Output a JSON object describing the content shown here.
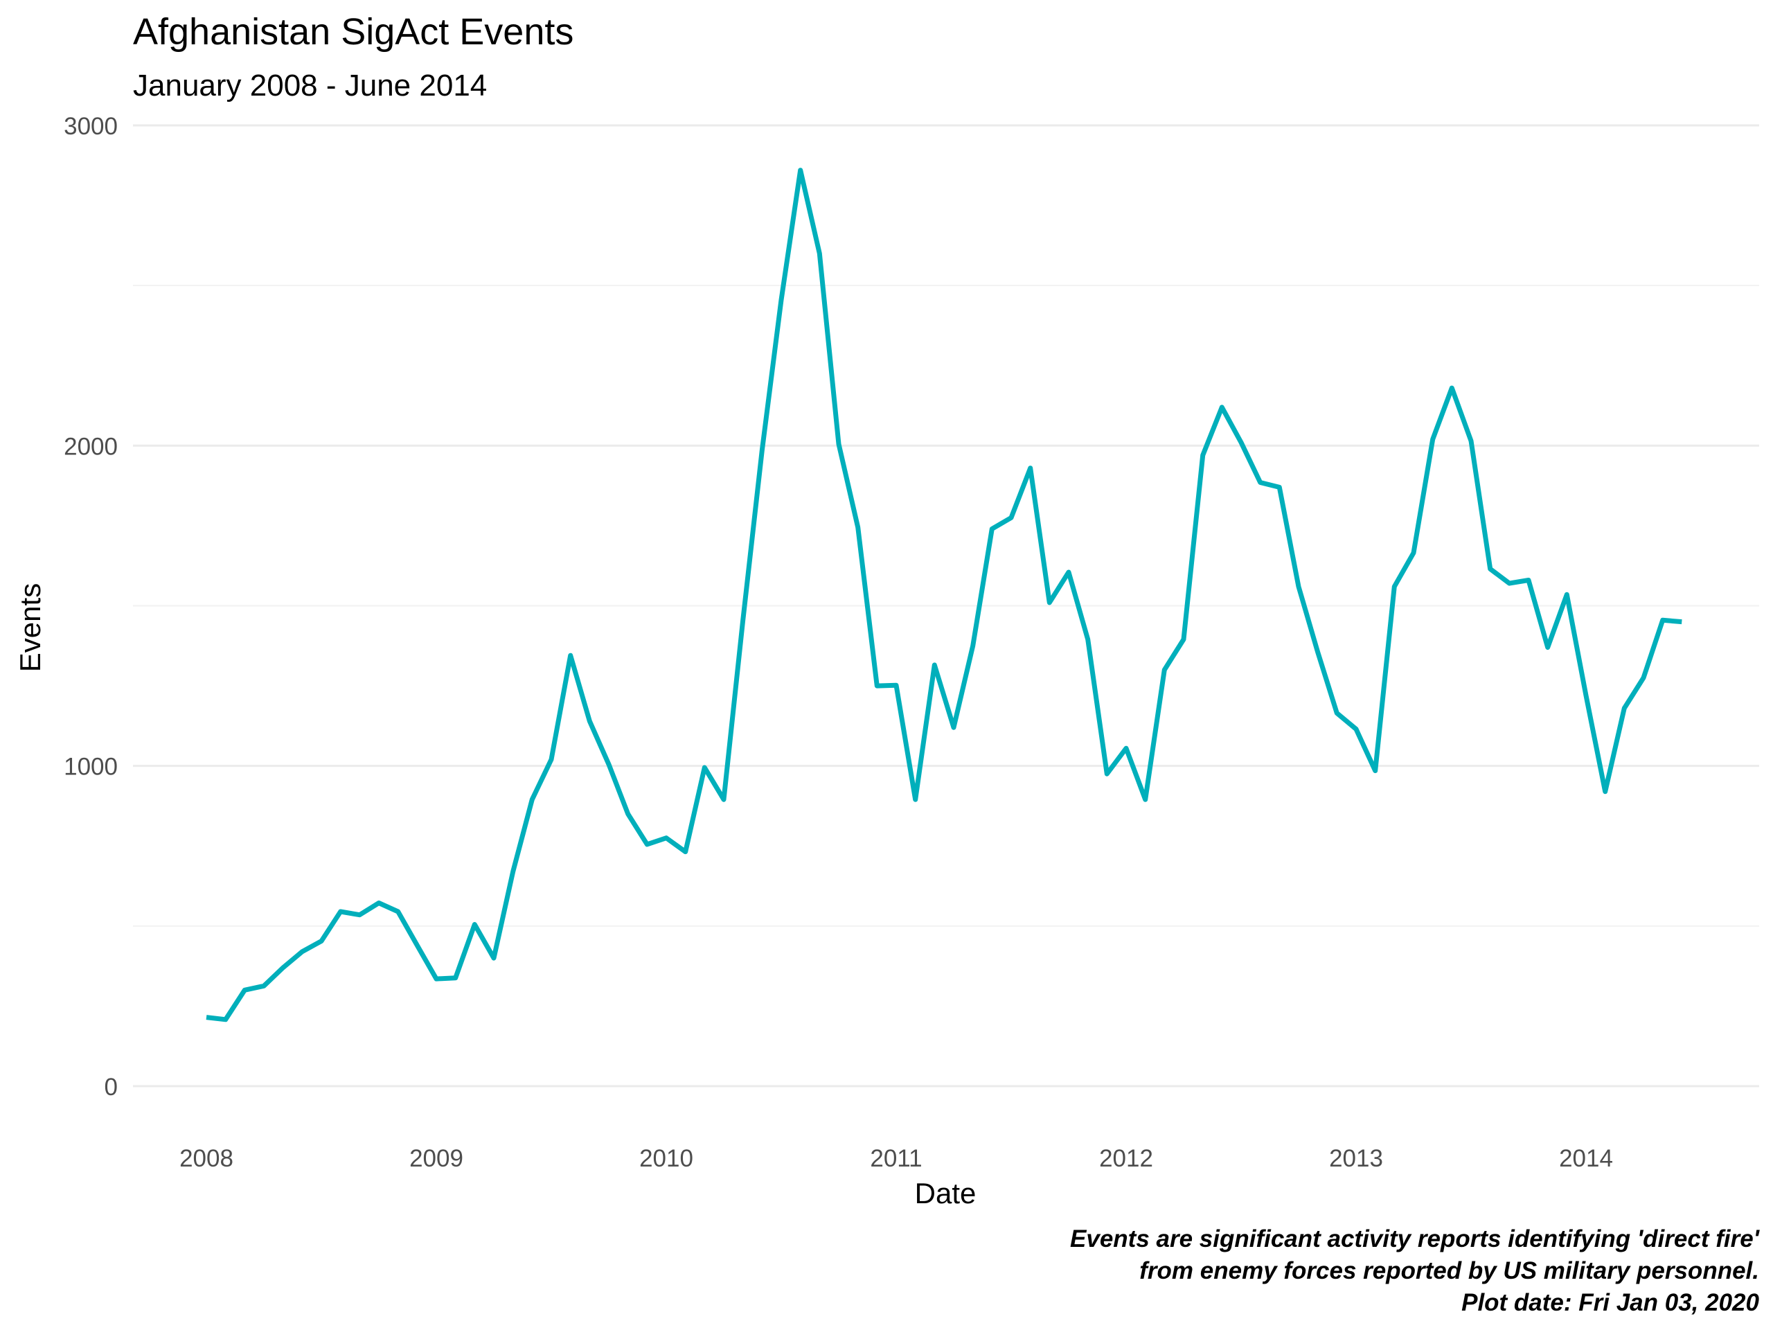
{
  "chart_data": {
    "type": "line",
    "title": "Afghanistan SigAct Events",
    "subtitle": "January 2008 - June 2014",
    "xlabel": "Date",
    "ylabel": "Events",
    "ylim": [
      0,
      3000
    ],
    "y_ticks": [
      "0",
      "1000",
      "2000",
      "3000"
    ],
    "x_ticks": [
      "2008",
      "2009",
      "2010",
      "2011",
      "2012",
      "2013",
      "2014"
    ],
    "grid": "horizontal",
    "legend": "none",
    "line_color": "#00AFBB",
    "caption": [
      "Events are significant activity reports identifying 'direct fire'",
      "from enemy forces reported by US military personnel.",
      "Plot date:  Fri Jan 03, 2020"
    ],
    "series": [
      {
        "x": [
          "2008-01",
          "2008-02",
          "2008-03",
          "2008-04",
          "2008-05",
          "2008-06",
          "2008-07",
          "2008-08",
          "2008-09",
          "2008-10",
          "2008-11",
          "2008-12",
          "2009-01",
          "2009-02",
          "2009-03",
          "2009-04",
          "2009-05",
          "2009-06",
          "2009-07",
          "2009-08",
          "2009-09",
          "2009-10",
          "2009-11",
          "2009-12",
          "2010-01",
          "2010-02",
          "2010-03",
          "2010-04",
          "2010-05",
          "2010-06",
          "2010-07",
          "2010-08",
          "2010-09",
          "2010-10",
          "2010-11",
          "2010-12",
          "2011-01",
          "2011-02",
          "2011-03",
          "2011-04",
          "2011-05",
          "2011-06",
          "2011-07",
          "2011-08",
          "2011-09",
          "2011-10",
          "2011-11",
          "2011-12",
          "2012-01",
          "2012-02",
          "2012-03",
          "2012-04",
          "2012-05",
          "2012-06",
          "2012-07",
          "2012-08",
          "2012-09",
          "2012-10",
          "2012-11",
          "2012-12",
          "2013-01",
          "2013-02",
          "2013-03",
          "2013-04",
          "2013-05",
          "2013-06",
          "2013-07",
          "2013-08",
          "2013-09",
          "2013-10",
          "2013-11",
          "2013-12",
          "2014-01",
          "2014-02",
          "2014-03",
          "2014-04",
          "2014-05",
          "2014-06"
        ],
        "values": [
          215,
          208,
          300,
          313,
          370,
          420,
          453,
          545,
          535,
          572,
          545,
          440,
          335,
          338,
          505,
          400,
          670,
          895,
          1020,
          1345,
          1140,
          1005,
          850,
          755,
          775,
          732,
          995,
          895,
          1455,
          1985,
          2455,
          2860,
          2600,
          2005,
          1745,
          1250,
          1252,
          895,
          1315,
          1120,
          1375,
          1740,
          1775,
          1930,
          1510,
          1605,
          1395,
          975,
          1055,
          895,
          1300,
          1395,
          1970,
          2120,
          2010,
          1885,
          1870,
          1560,
          1355,
          1165,
          1115,
          985,
          1560,
          1665,
          2020,
          2180,
          2015,
          1615,
          1570,
          1580,
          1370,
          1535,
          1220,
          920,
          1180,
          1275,
          1455,
          1450
        ]
      }
    ]
  }
}
